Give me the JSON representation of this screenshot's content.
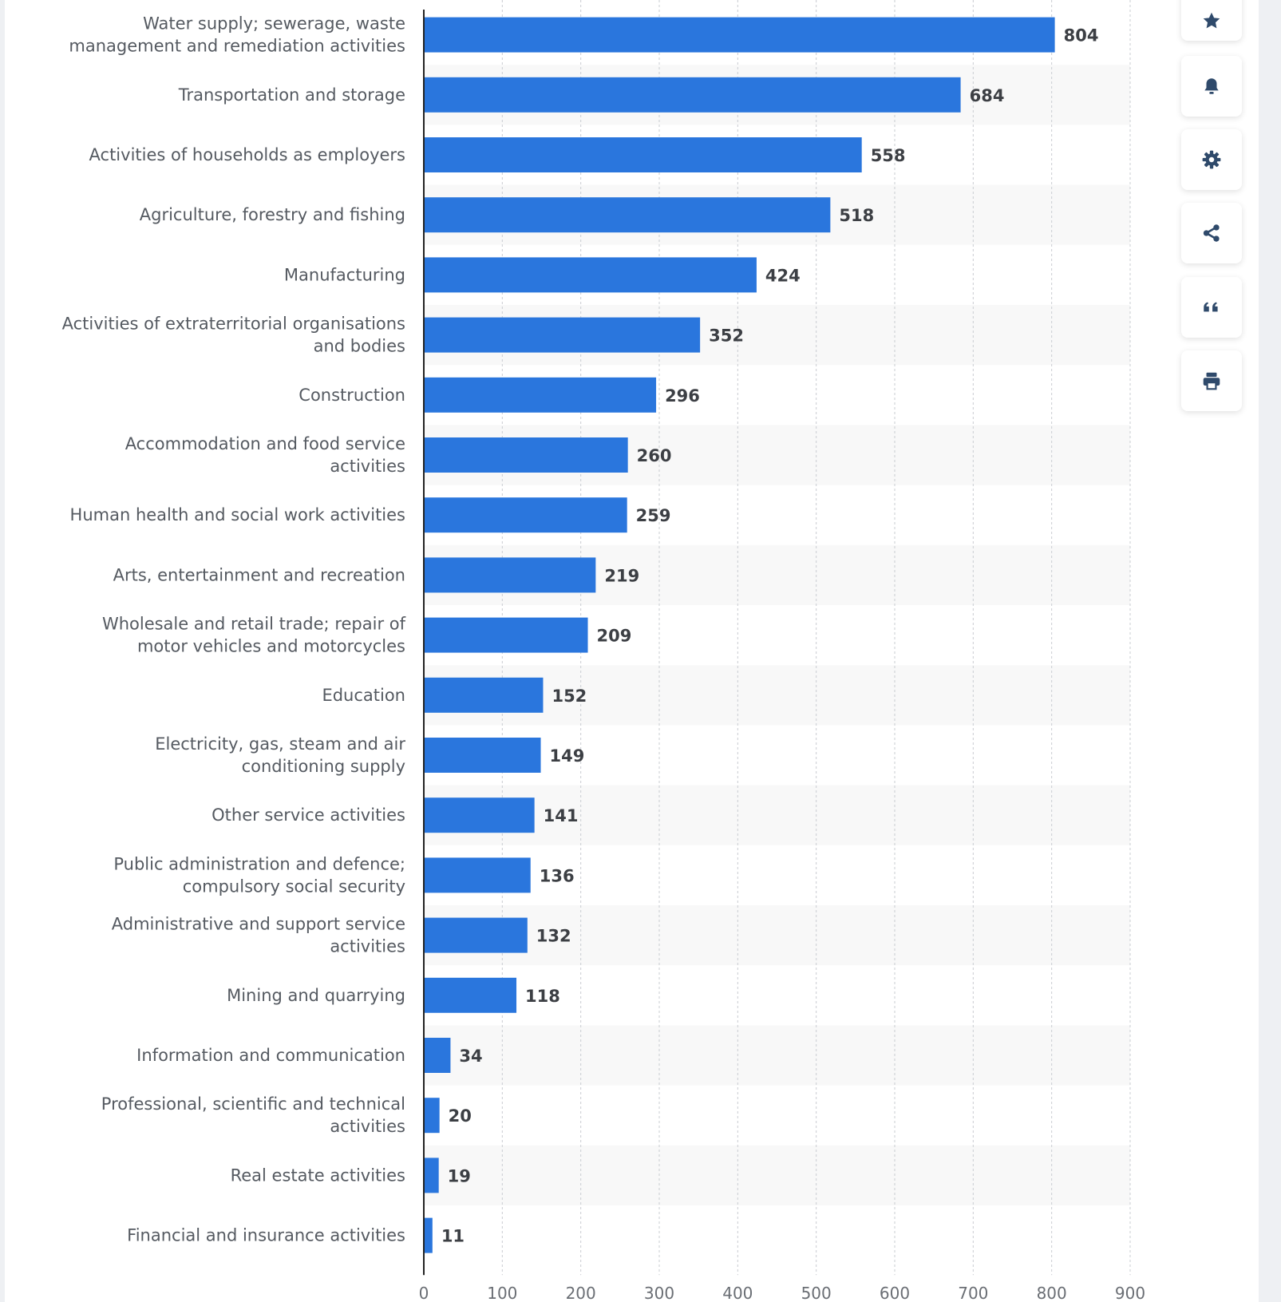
{
  "chart_data": {
    "type": "bar",
    "orientation": "horizontal",
    "title": "",
    "xlabel": "",
    "ylabel": "",
    "xlim": [
      0,
      900
    ],
    "xticks": [
      "0",
      "100",
      "200",
      "300",
      "400",
      "500",
      "600",
      "700",
      "800",
      "900"
    ],
    "grid": true,
    "categories": [
      [
        "Water supply; sewerage, waste",
        "management and remediation activities"
      ],
      [
        "Transportation and storage"
      ],
      [
        "Activities of households as employers"
      ],
      [
        "Agriculture, forestry and fishing"
      ],
      [
        "Manufacturing"
      ],
      [
        "Activities of extraterritorial organisations",
        "and bodies"
      ],
      [
        "Construction"
      ],
      [
        "Accommodation and food service",
        "activities"
      ],
      [
        "Human health and social work activities"
      ],
      [
        "Arts, entertainment and recreation"
      ],
      [
        "Wholesale and retail trade; repair of",
        "motor vehicles and motorcycles"
      ],
      [
        "Education"
      ],
      [
        "Electricity, gas, steam and air",
        "conditioning supply"
      ],
      [
        "Other service activities"
      ],
      [
        "Public administration and defence;",
        "compulsory social security"
      ],
      [
        "Administrative and support service",
        "activities"
      ],
      [
        "Mining and quarrying"
      ],
      [
        "Information and communication"
      ],
      [
        "Professional, scientific and technical",
        "activities"
      ],
      [
        "Real estate activities"
      ],
      [
        "Financial and insurance activities"
      ]
    ],
    "values": [
      804,
      684,
      558,
      518,
      424,
      352,
      296,
      260,
      259,
      219,
      209,
      152,
      149,
      141,
      136,
      132,
      118,
      34,
      20,
      19,
      11
    ],
    "bar_color": "#2a76dd",
    "stripe_color": "#f8f8f8"
  },
  "toolbar": [
    {
      "name": "favorite-button",
      "icon": "star-icon"
    },
    {
      "name": "notification-button",
      "icon": "bell-icon"
    },
    {
      "name": "settings-button",
      "icon": "gear-icon"
    },
    {
      "name": "share-button",
      "icon": "share-icon"
    },
    {
      "name": "cite-button",
      "icon": "quote-icon"
    },
    {
      "name": "print-button",
      "icon": "printer-icon"
    }
  ],
  "icon_color": "#2f4a6b"
}
